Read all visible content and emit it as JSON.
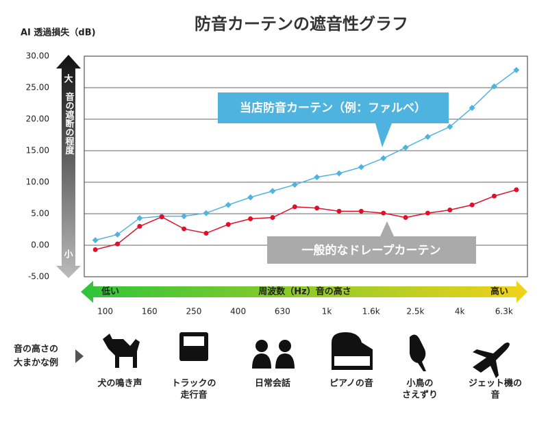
{
  "chart_data": {
    "type": "line",
    "title": "防音カーテンの遮音性グラフ",
    "y_axis_label": "AI 透過損失（dB)",
    "scale_top": "大",
    "scale_label": "音の遮断の程度",
    "scale_bottom": "小",
    "band_low": "低い",
    "band_label": "周波数（Hz）音の高さ",
    "band_high": "高い",
    "categories": [
      null,
      "100",
      null,
      "160",
      null,
      "250",
      null,
      "400",
      null,
      "630",
      null,
      "1k",
      null,
      "1.6k",
      null,
      "2.5k",
      null,
      "4k",
      null,
      "6.3k"
    ],
    "series": [
      {
        "name": "当店防音カーテン（例：ファルベ）",
        "color": "#4fb3e0",
        "values": [
          0.8,
          1.7,
          4.3,
          4.6,
          4.6,
          5.1,
          6.4,
          7.6,
          8.6,
          9.6,
          10.8,
          11.4,
          12.4,
          13.8,
          15.5,
          17.2,
          18.8,
          21.8,
          25.2,
          27.8
        ]
      },
      {
        "name": "一般的なドレープカーテン",
        "color": "#e0102a",
        "values": [
          -0.7,
          0.2,
          3.0,
          4.5,
          2.6,
          1.9,
          3.3,
          4.2,
          4.4,
          6.1,
          5.9,
          5.4,
          5.4,
          5.1,
          4.4,
          5.1,
          5.6,
          6.4,
          7.8,
          8.8
        ]
      }
    ],
    "ylim": [
      -5,
      30
    ],
    "yticks": [
      {
        "value": -5,
        "label": "-5.00"
      },
      {
        "value": 0,
        "label": "0.00"
      },
      {
        "value": 5,
        "label": "5.00"
      },
      {
        "value": 10,
        "label": "10.00"
      },
      {
        "value": 15,
        "label": "15.00"
      },
      {
        "value": 20,
        "label": "20.00"
      },
      {
        "value": 25,
        "label": "25.00"
      },
      {
        "value": 30,
        "label": "30.00"
      }
    ],
    "grid": true,
    "examples_label": "音の高さの大まかな例",
    "examples": [
      [
        "犬の鳴き声"
      ],
      [
        "トラックの",
        "走行音"
      ],
      [
        "日常会話"
      ],
      [
        "ピアノの音"
      ],
      [
        "小鳥の",
        "さえずり"
      ],
      [
        "ジェット機の",
        "音"
      ]
    ]
  }
}
